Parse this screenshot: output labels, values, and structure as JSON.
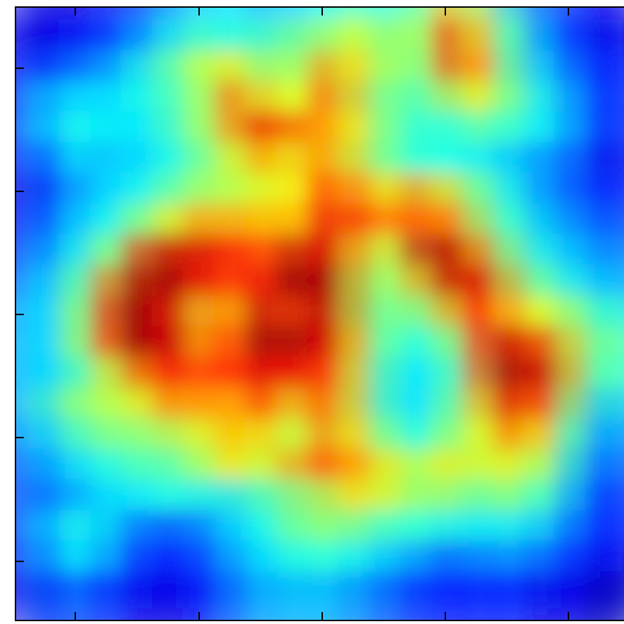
{
  "chart_data": {
    "type": "heatmap",
    "colormap": "jet",
    "z": [
      [
        0.1,
        0.1,
        0.1,
        0.15,
        0.2,
        0.3,
        0.35,
        0.35,
        0.3,
        0.35,
        0.4,
        0.45,
        0.4,
        0.5,
        0.7,
        0.5,
        0.3,
        0.2,
        0.15,
        0.1
      ],
      [
        0.1,
        0.1,
        0.15,
        0.2,
        0.3,
        0.4,
        0.45,
        0.4,
        0.45,
        0.5,
        0.55,
        0.6,
        0.5,
        0.55,
        0.85,
        0.6,
        0.4,
        0.25,
        0.15,
        0.1
      ],
      [
        0.15,
        0.2,
        0.25,
        0.3,
        0.4,
        0.5,
        0.6,
        0.65,
        0.5,
        0.55,
        0.75,
        0.6,
        0.5,
        0.5,
        0.8,
        0.7,
        0.4,
        0.3,
        0.2,
        0.15
      ],
      [
        0.2,
        0.35,
        0.35,
        0.35,
        0.4,
        0.45,
        0.55,
        0.8,
        0.6,
        0.6,
        0.8,
        0.55,
        0.45,
        0.45,
        0.55,
        0.6,
        0.45,
        0.35,
        0.25,
        0.15
      ],
      [
        0.2,
        0.35,
        0.4,
        0.35,
        0.35,
        0.45,
        0.55,
        0.75,
        0.9,
        0.75,
        0.7,
        0.6,
        0.45,
        0.4,
        0.4,
        0.45,
        0.4,
        0.35,
        0.25,
        0.15
      ],
      [
        0.15,
        0.25,
        0.35,
        0.3,
        0.35,
        0.4,
        0.5,
        0.6,
        0.7,
        0.6,
        0.75,
        0.55,
        0.45,
        0.4,
        0.4,
        0.35,
        0.3,
        0.25,
        0.2,
        0.1
      ],
      [
        0.1,
        0.2,
        0.3,
        0.35,
        0.4,
        0.5,
        0.55,
        0.55,
        0.6,
        0.65,
        0.85,
        0.7,
        0.65,
        0.75,
        0.6,
        0.45,
        0.35,
        0.25,
        0.2,
        0.15
      ],
      [
        0.15,
        0.25,
        0.35,
        0.4,
        0.55,
        0.65,
        0.75,
        0.7,
        0.7,
        0.7,
        0.9,
        0.8,
        0.75,
        0.8,
        0.75,
        0.5,
        0.4,
        0.3,
        0.25,
        0.2
      ],
      [
        0.2,
        0.3,
        0.4,
        0.55,
        0.9,
        0.95,
        0.9,
        0.85,
        0.8,
        0.95,
        0.9,
        0.6,
        0.55,
        0.95,
        0.95,
        0.7,
        0.45,
        0.35,
        0.3,
        0.25
      ],
      [
        0.25,
        0.35,
        0.5,
        0.8,
        1,
        0.95,
        0.85,
        0.8,
        0.9,
        1,
        0.95,
        0.55,
        0.5,
        0.7,
        0.95,
        0.9,
        0.55,
        0.45,
        0.35,
        0.3
      ],
      [
        0.3,
        0.35,
        0.55,
        0.9,
        1,
        0.85,
        0.6,
        0.75,
        0.95,
        0.8,
        0.95,
        0.55,
        0.45,
        0.5,
        0.7,
        0.85,
        0.65,
        0.6,
        0.5,
        0.4
      ],
      [
        0.3,
        0.35,
        0.55,
        0.85,
        1,
        0.9,
        0.7,
        0.85,
        1,
        0.95,
        0.9,
        0.6,
        0.4,
        0.4,
        0.5,
        0.85,
        0.95,
        0.8,
        0.55,
        0.45
      ],
      [
        0.3,
        0.35,
        0.45,
        0.6,
        0.8,
        0.85,
        0.8,
        0.85,
        0.9,
        0.85,
        0.8,
        0.55,
        0.35,
        0.35,
        0.45,
        0.8,
        1,
        0.9,
        0.55,
        0.4
      ],
      [
        0.3,
        0.45,
        0.55,
        0.55,
        0.6,
        0.75,
        0.7,
        0.7,
        0.8,
        0.6,
        0.8,
        0.55,
        0.35,
        0.35,
        0.5,
        0.7,
        0.9,
        0.75,
        0.45,
        0.3
      ],
      [
        0.25,
        0.35,
        0.45,
        0.5,
        0.5,
        0.55,
        0.6,
        0.7,
        0.6,
        0.55,
        0.75,
        0.6,
        0.45,
        0.4,
        0.55,
        0.6,
        0.75,
        0.6,
        0.35,
        0.25
      ],
      [
        0.2,
        0.3,
        0.35,
        0.4,
        0.45,
        0.45,
        0.55,
        0.65,
        0.55,
        0.75,
        0.8,
        0.7,
        0.6,
        0.55,
        0.65,
        0.55,
        0.6,
        0.5,
        0.3,
        0.2
      ],
      [
        0.2,
        0.25,
        0.3,
        0.35,
        0.35,
        0.4,
        0.35,
        0.35,
        0.45,
        0.5,
        0.55,
        0.65,
        0.55,
        0.5,
        0.5,
        0.45,
        0.5,
        0.4,
        0.25,
        0.15
      ],
      [
        0.2,
        0.35,
        0.4,
        0.3,
        0.2,
        0.2,
        0.25,
        0.35,
        0.4,
        0.5,
        0.5,
        0.45,
        0.4,
        0.4,
        0.35,
        0.35,
        0.35,
        0.3,
        0.2,
        0.15
      ],
      [
        0.15,
        0.3,
        0.35,
        0.25,
        0.15,
        0.15,
        0.2,
        0.3,
        0.35,
        0.4,
        0.4,
        0.35,
        0.3,
        0.25,
        0.2,
        0.25,
        0.25,
        0.2,
        0.15,
        0.1
      ],
      [
        0.1,
        0.2,
        0.2,
        0.15,
        0.1,
        0.1,
        0.15,
        0.25,
        0.3,
        0.3,
        0.3,
        0.25,
        0.2,
        0.15,
        0.15,
        0.15,
        0.15,
        0.1,
        0.1,
        0.05
      ]
    ]
  }
}
